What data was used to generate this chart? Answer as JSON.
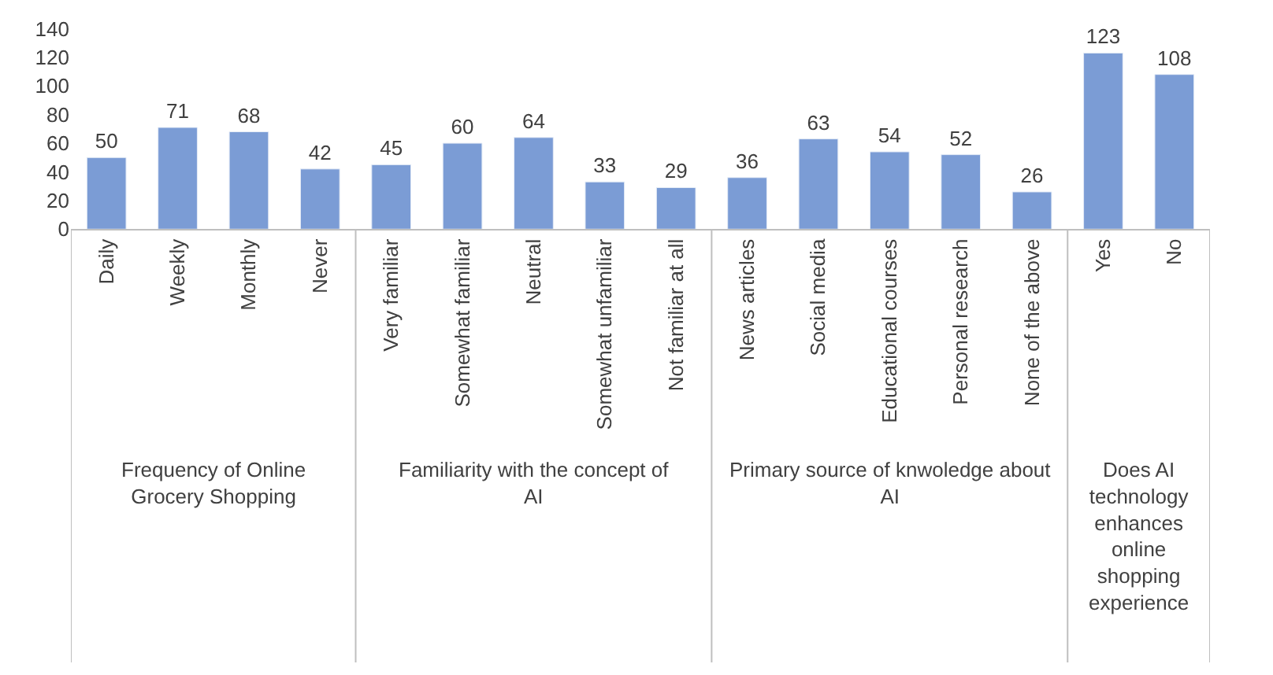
{
  "chart_data": {
    "type": "bar",
    "categories": [
      "Daily",
      "Weekly",
      "Monthly",
      "Never",
      "Very familiar",
      "Somewhat familiar",
      "Neutral",
      "Somewhat unfamiliar",
      "Not familiar at all",
      "News articles",
      "Social media",
      "Educational courses",
      "Personal research",
      "None of the above",
      "Yes",
      "No"
    ],
    "values": [
      50,
      71,
      68,
      42,
      45,
      60,
      64,
      33,
      29,
      36,
      63,
      54,
      52,
      26,
      123,
      108
    ],
    "color": "#7b9cd5",
    "ylim": [
      0,
      140
    ],
    "yticks": [
      0,
      20,
      40,
      60,
      80,
      100,
      120,
      140
    ],
    "data_labels": true,
    "annotations": [
      "Frequency of Online Grocery Shopping",
      "Familiarity with the concept of AI",
      "Primary source of knwoledge about AI",
      "Does AI technology enhances online shopping experience"
    ]
  }
}
